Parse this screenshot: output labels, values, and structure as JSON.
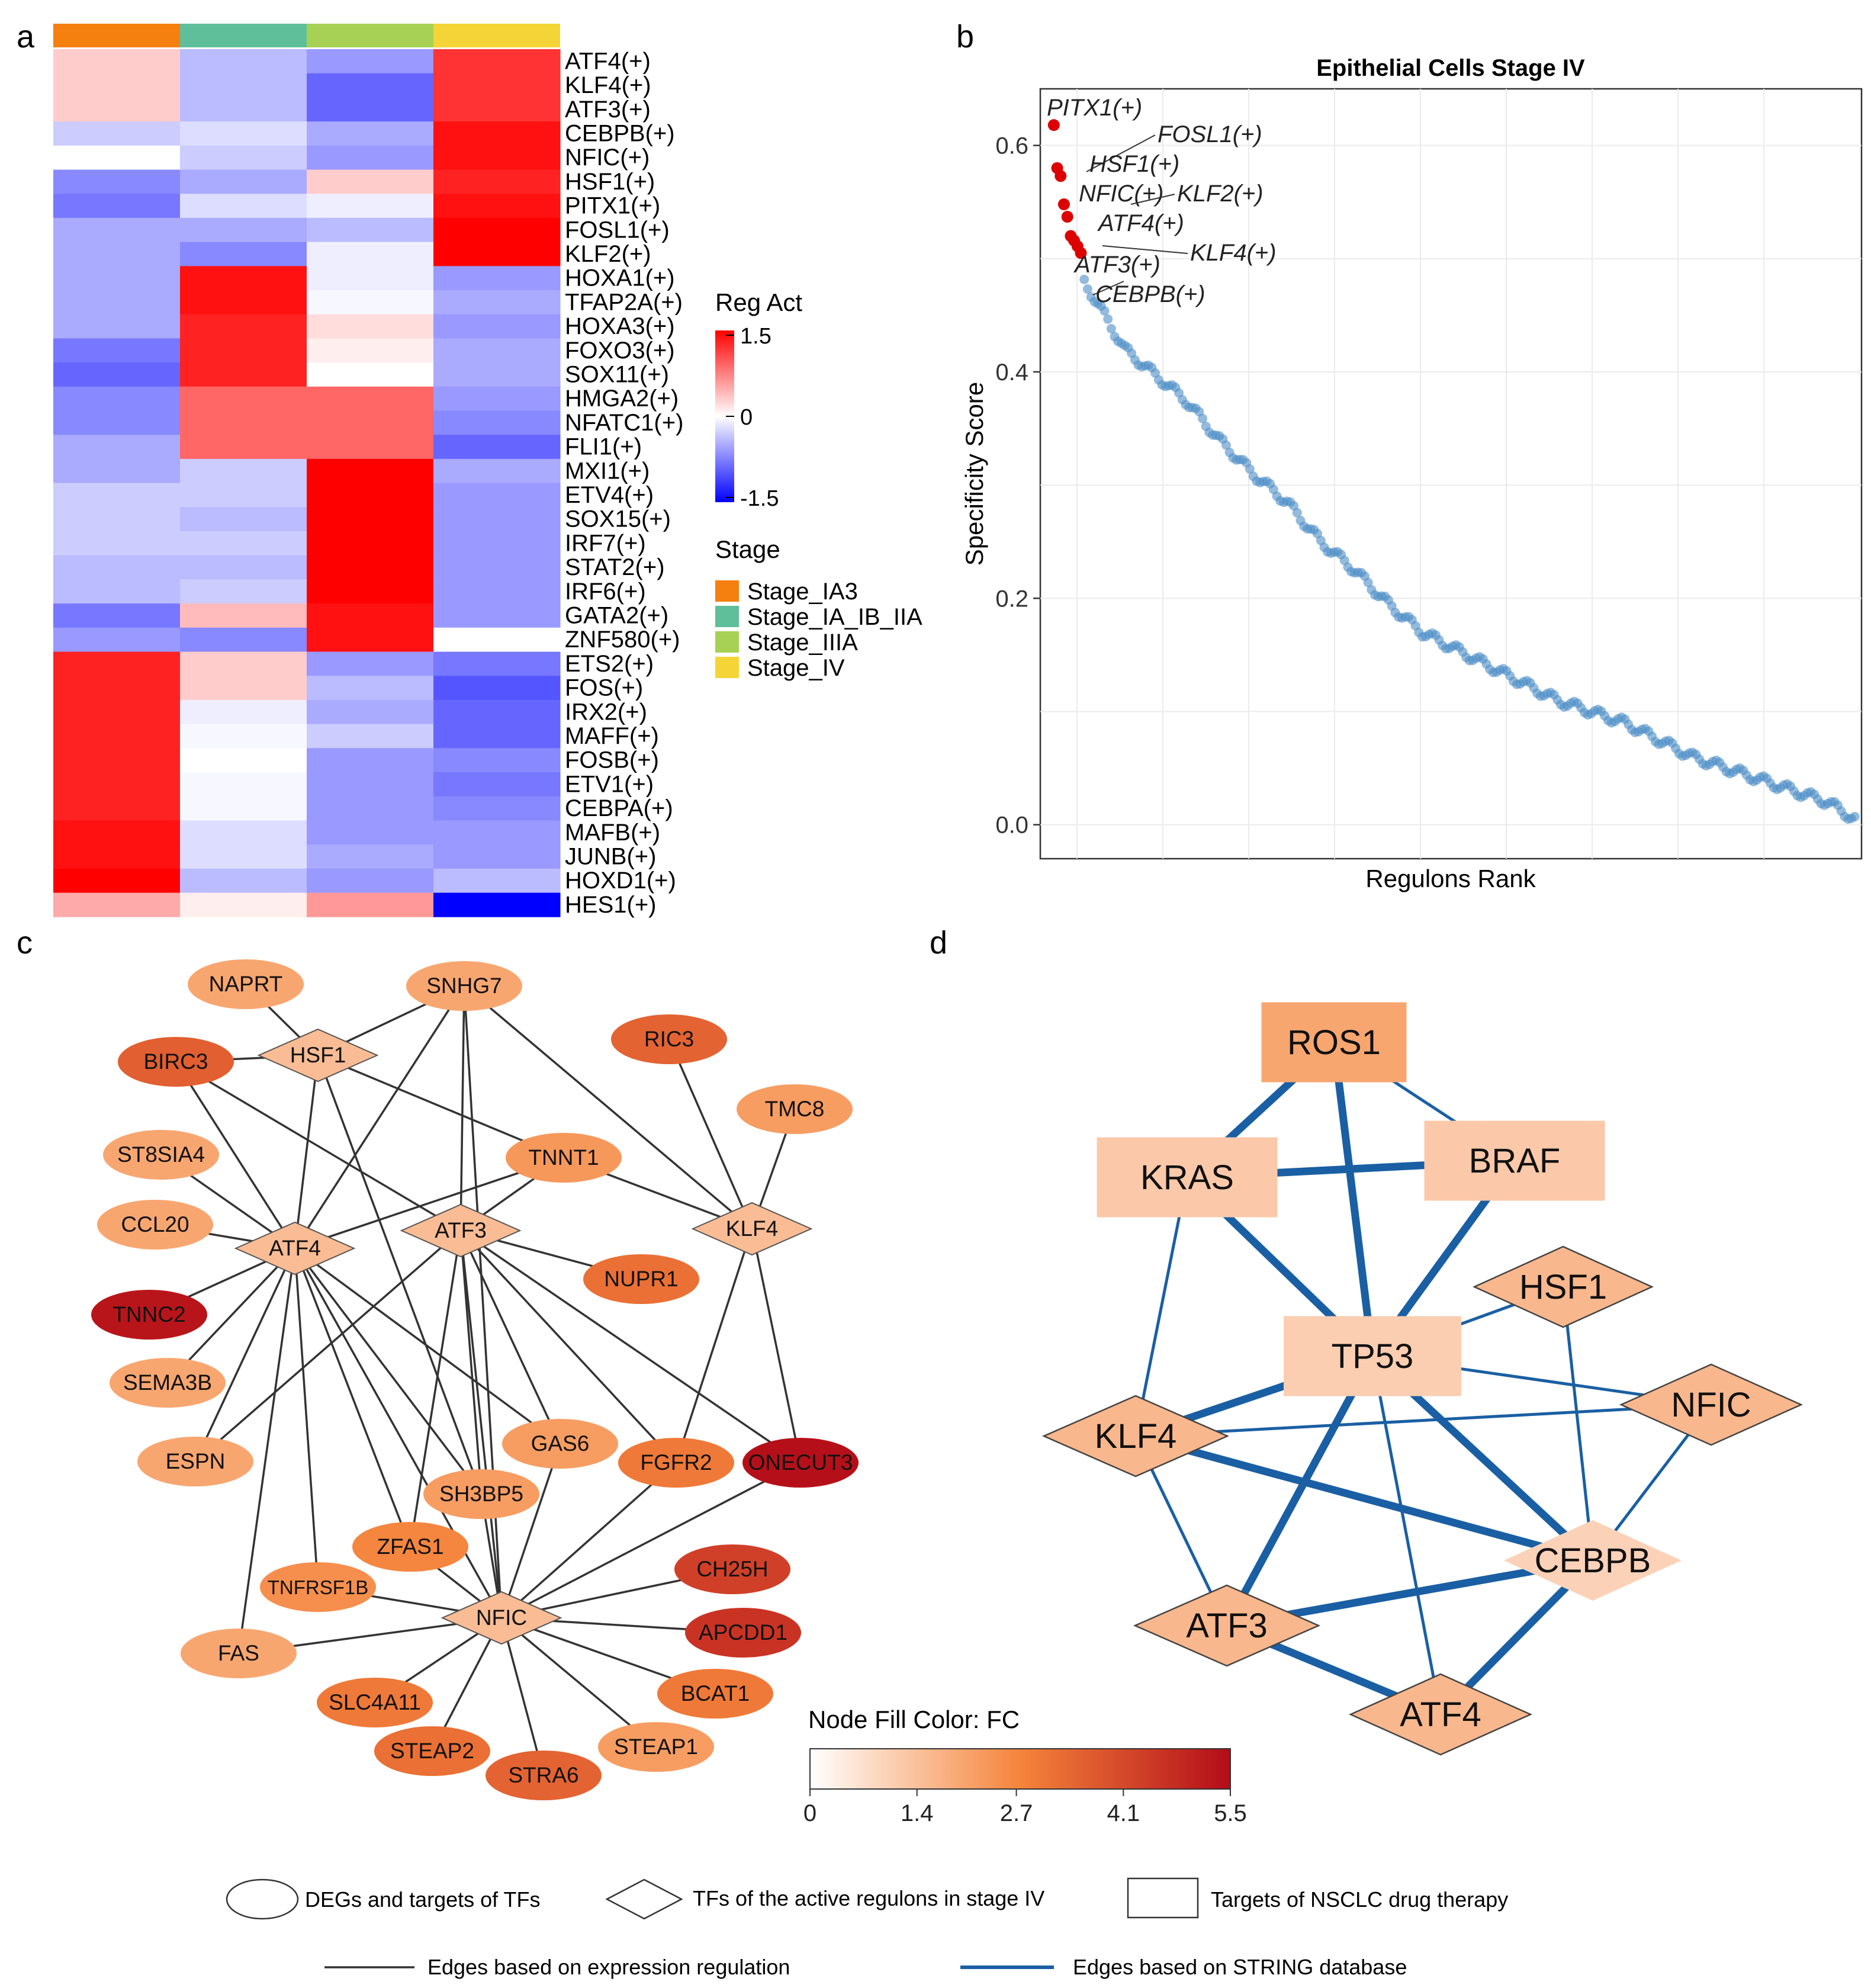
{
  "panel_labels": {
    "a": "a",
    "b": "b",
    "c": "c",
    "d": "d"
  },
  "colors": {
    "heat_low": "#0000ff",
    "heat_mid": "#ffffff",
    "heat_high": "#ff0000",
    "stage_IA3": "#f57f0f",
    "stage_IA_IB_IIA": "#5fbf9b",
    "stage_IIIA": "#a6d154",
    "stage_IV": "#f5d437",
    "fc_low": "#ffffff",
    "fc_mid": "#f5843b",
    "fc_high": "#b30c19",
    "string_edge": "#1a5fa3",
    "expr_edge": "#333333",
    "scatter_point": "#4d8ec7",
    "scatter_highlight": "#dd0000"
  },
  "chart_data": [
    {
      "type": "heatmap",
      "panel": "a",
      "columns": [
        "Stage_IA3",
        "Stage_IA_IB_IIA",
        "Stage_IIIA",
        "Stage_IV"
      ],
      "rows": [
        "ATF4(+)",
        "KLF4(+)",
        "ATF3(+)",
        "CEBPB(+)",
        "NFIC(+)",
        "HSF1(+)",
        "PITX1(+)",
        "FOSL1(+)",
        "KLF2(+)",
        "HOXA1(+)",
        "TFAP2A(+)",
        "HOXA3(+)",
        "FOXO3(+)",
        "SOX11(+)",
        "HMGA2(+)",
        "NFATC1(+)",
        "FLI1(+)",
        "MXI1(+)",
        "ETV4(+)",
        "SOX15(+)",
        "IRF7(+)",
        "STAT2(+)",
        "IRF6(+)",
        "GATA2(+)",
        "ZNF580(+)",
        "ETS2(+)",
        "FOS(+)",
        "IRX2(+)",
        "MAFF(+)",
        "FOSB(+)",
        "ETV1(+)",
        "CEBPA(+)",
        "MAFB(+)",
        "JUNB(+)",
        "HOXD1(+)",
        "HES1(+)"
      ],
      "values": [
        [
          0.3,
          -0.4,
          -0.6,
          1.2
        ],
        [
          0.3,
          -0.4,
          -0.9,
          1.2
        ],
        [
          0.3,
          -0.4,
          -0.9,
          1.2
        ],
        [
          -0.3,
          -0.2,
          -0.5,
          1.4
        ],
        [
          0.0,
          -0.3,
          -0.6,
          1.4
        ],
        [
          -0.7,
          -0.5,
          0.3,
          1.3
        ],
        [
          -0.8,
          -0.2,
          -0.1,
          1.4
        ],
        [
          -0.5,
          -0.5,
          -0.4,
          1.5
        ],
        [
          -0.5,
          -0.7,
          -0.1,
          1.5
        ],
        [
          -0.5,
          1.4,
          -0.1,
          -0.6
        ],
        [
          -0.5,
          1.4,
          -0.05,
          -0.5
        ],
        [
          -0.5,
          1.3,
          0.2,
          -0.6
        ],
        [
          -0.8,
          1.3,
          0.1,
          -0.5
        ],
        [
          -0.9,
          1.3,
          0.0,
          -0.5
        ],
        [
          -0.7,
          0.9,
          0.9,
          -0.6
        ],
        [
          -0.7,
          0.9,
          0.9,
          -0.7
        ],
        [
          -0.5,
          0.9,
          0.9,
          -0.9
        ],
        [
          -0.5,
          -0.3,
          1.5,
          -0.5
        ],
        [
          -0.3,
          -0.3,
          1.5,
          -0.6
        ],
        [
          -0.3,
          -0.4,
          1.5,
          -0.6
        ],
        [
          -0.3,
          -0.3,
          1.5,
          -0.6
        ],
        [
          -0.4,
          -0.4,
          1.5,
          -0.6
        ],
        [
          -0.4,
          -0.3,
          1.5,
          -0.6
        ],
        [
          -0.8,
          0.4,
          1.4,
          -0.6
        ],
        [
          -0.6,
          -0.7,
          1.4,
          0.0
        ],
        [
          1.3,
          0.3,
          -0.6,
          -0.8
        ],
        [
          1.3,
          0.3,
          -0.4,
          -1.0
        ],
        [
          1.3,
          -0.1,
          -0.5,
          -0.9
        ],
        [
          1.3,
          -0.05,
          -0.3,
          -0.9
        ],
        [
          1.3,
          0.0,
          -0.6,
          -0.7
        ],
        [
          1.3,
          -0.05,
          -0.6,
          -0.8
        ],
        [
          1.3,
          -0.05,
          -0.6,
          -0.7
        ],
        [
          1.4,
          -0.2,
          -0.6,
          -0.6
        ],
        [
          1.4,
          -0.2,
          -0.5,
          -0.6
        ],
        [
          1.5,
          -0.4,
          -0.6,
          -0.4
        ],
        [
          0.5,
          0.1,
          0.6,
          -1.5
        ]
      ],
      "legend_title": "Reg Act",
      "scale_labels": [
        "1.5",
        "0",
        "-1.5"
      ],
      "stage_legend_title": "Stage",
      "stage_legend": [
        "Stage_IA3",
        "Stage_IA_IB_IIA",
        "Stage_IIIA",
        "Stage_IV"
      ]
    },
    {
      "type": "scatter",
      "panel": "b",
      "title": "Epithelial Cells Stage IV",
      "xlabel": "Regulons Rank",
      "ylabel": "Specificity Score",
      "ylim": [
        -0.03,
        0.65
      ],
      "xlim": [
        -3,
        240
      ],
      "yticks": [
        "0.0",
        "0.2",
        "0.4",
        "0.6"
      ],
      "n_points": 240,
      "highlighted": [
        {
          "label": "PITX1(+)",
          "rank": 1,
          "score": 0.618
        },
        {
          "label": "FOSL1(+)",
          "rank": 2,
          "score": 0.58
        },
        {
          "label": "HSF1(+)",
          "rank": 3,
          "score": 0.573
        },
        {
          "label": "NFIC(+)",
          "rank": 4,
          "score": 0.548
        },
        {
          "label": "KLF2(+)",
          "rank": 5,
          "score": 0.537
        },
        {
          "label": "ATF4(+)",
          "rank": 6,
          "score": 0.52
        },
        {
          "label": "KLF4(+)",
          "rank": 7,
          "score": 0.516
        },
        {
          "label": "ATF3(+)",
          "rank": 8,
          "score": 0.511
        },
        {
          "label": "CEBPB(+)",
          "rank": 9,
          "score": 0.505
        }
      ],
      "curve": [
        [
          10,
          0.48
        ],
        [
          15,
          0.455
        ],
        [
          22,
          0.42
        ],
        [
          30,
          0.4
        ],
        [
          40,
          0.375
        ],
        [
          50,
          0.34
        ],
        [
          60,
          0.31
        ],
        [
          70,
          0.285
        ],
        [
          80,
          0.25
        ],
        [
          90,
          0.225
        ],
        [
          100,
          0.195
        ],
        [
          110,
          0.17
        ],
        [
          120,
          0.155
        ],
        [
          130,
          0.14
        ],
        [
          140,
          0.125
        ],
        [
          150,
          0.11
        ],
        [
          160,
          0.1
        ],
        [
          170,
          0.09
        ],
        [
          180,
          0.075
        ],
        [
          190,
          0.06
        ],
        [
          200,
          0.05
        ],
        [
          210,
          0.04
        ],
        [
          220,
          0.03
        ],
        [
          230,
          0.02
        ],
        [
          238,
          0.005
        ]
      ]
    },
    {
      "type": "network",
      "panel": "c",
      "nodes": [
        {
          "label": "NAPRT",
          "shape": "ellipse",
          "fc": 2.0
        },
        {
          "label": "SNHG7",
          "shape": "ellipse",
          "fc": 2.0
        },
        {
          "label": "HSF1",
          "shape": "diamond",
          "fc": 1.5
        },
        {
          "label": "BIRC3",
          "shape": "ellipse",
          "fc": 3.6
        },
        {
          "label": "RIC3",
          "shape": "ellipse",
          "fc": 3.5
        },
        {
          "label": "TMC8",
          "shape": "ellipse",
          "fc": 2.2
        },
        {
          "label": "ST8SIA4",
          "shape": "ellipse",
          "fc": 2.0
        },
        {
          "label": "TNNT1",
          "shape": "ellipse",
          "fc": 2.3
        },
        {
          "label": "CCL20",
          "shape": "ellipse",
          "fc": 2.0
        },
        {
          "label": "ATF4",
          "shape": "diamond",
          "fc": 1.5
        },
        {
          "label": "ATF3",
          "shape": "diamond",
          "fc": 1.5
        },
        {
          "label": "KLF4",
          "shape": "diamond",
          "fc": 1.5
        },
        {
          "label": "NUPR1",
          "shape": "ellipse",
          "fc": 3.2
        },
        {
          "label": "TNNC2",
          "shape": "ellipse",
          "fc": 5.3
        },
        {
          "label": "SEMA3B",
          "shape": "ellipse",
          "fc": 2.0
        },
        {
          "label": "ESPN",
          "shape": "ellipse",
          "fc": 2.0
        },
        {
          "label": "GAS6",
          "shape": "ellipse",
          "fc": 2.2
        },
        {
          "label": "FGFR2",
          "shape": "ellipse",
          "fc": 3.0
        },
        {
          "label": "ONECUT3",
          "shape": "ellipse",
          "fc": 5.4
        },
        {
          "label": "SH3BP5",
          "shape": "ellipse",
          "fc": 2.2
        },
        {
          "label": "ZFAS1",
          "shape": "ellipse",
          "fc": 2.7
        },
        {
          "label": "CH25H",
          "shape": "ellipse",
          "fc": 4.3
        },
        {
          "label": "TNFRSF1B",
          "shape": "ellipse",
          "fc": 2.5
        },
        {
          "label": "NFIC",
          "shape": "diamond",
          "fc": 1.5
        },
        {
          "label": "APCDD1",
          "shape": "ellipse",
          "fc": 4.6
        },
        {
          "label": "FAS",
          "shape": "ellipse",
          "fc": 2.0
        },
        {
          "label": "SLC4A11",
          "shape": "ellipse",
          "fc": 3.0
        },
        {
          "label": "BCAT1",
          "shape": "ellipse",
          "fc": 3.0
        },
        {
          "label": "STEAP2",
          "shape": "ellipse",
          "fc": 3.2
        },
        {
          "label": "STEAP1",
          "shape": "ellipse",
          "fc": 2.2
        },
        {
          "label": "STRA6",
          "shape": "ellipse",
          "fc": 3.5
        }
      ],
      "edges": [
        [
          "HSF1",
          "NAPRT"
        ],
        [
          "HSF1",
          "SNHG7"
        ],
        [
          "HSF1",
          "BIRC3"
        ],
        [
          "HSF1",
          "TNNT1"
        ],
        [
          "HSF1",
          "ATF4"
        ],
        [
          "HSF1",
          "SH3BP5"
        ],
        [
          "SNHG7",
          "ATF4"
        ],
        [
          "SNHG7",
          "ATF3"
        ],
        [
          "SNHG7",
          "KLF4"
        ],
        [
          "SNHG7",
          "NFIC"
        ],
        [
          "BIRC3",
          "ATF4"
        ],
        [
          "BIRC3",
          "ATF3"
        ],
        [
          "ST8SIA4",
          "ATF4"
        ],
        [
          "CCL20",
          "ATF4"
        ],
        [
          "TNNT1",
          "ATF4"
        ],
        [
          "TNNT1",
          "ATF3"
        ],
        [
          "TNNT1",
          "KLF4"
        ],
        [
          "RIC3",
          "KLF4"
        ],
        [
          "TMC8",
          "KLF4"
        ],
        [
          "KLF4",
          "FGFR2"
        ],
        [
          "KLF4",
          "ONECUT3"
        ],
        [
          "ATF3",
          "NUPR1"
        ],
        [
          "ATF3",
          "ESPN"
        ],
        [
          "ATF3",
          "GAS6"
        ],
        [
          "ATF3",
          "FGFR2"
        ],
        [
          "ATF3",
          "ONECUT3"
        ],
        [
          "ATF3",
          "SH3BP5"
        ],
        [
          "ATF3",
          "ZFAS1"
        ],
        [
          "ATF3",
          "NFIC"
        ],
        [
          "ATF4",
          "TNNC2"
        ],
        [
          "ATF4",
          "SEMA3B"
        ],
        [
          "ATF4",
          "ESPN"
        ],
        [
          "ATF4",
          "FAS"
        ],
        [
          "ATF4",
          "TNFRSF1B"
        ],
        [
          "ATF4",
          "ZFAS1"
        ],
        [
          "ATF4",
          "SH3BP5"
        ],
        [
          "ATF4",
          "GAS6"
        ],
        [
          "ATF4",
          "NFIC"
        ],
        [
          "NFIC",
          "GAS6"
        ],
        [
          "NFIC",
          "FGFR2"
        ],
        [
          "NFIC",
          "ONECUT3"
        ],
        [
          "NFIC",
          "CH25H"
        ],
        [
          "NFIC",
          "APCDD1"
        ],
        [
          "NFIC",
          "BCAT1"
        ],
        [
          "NFIC",
          "STEAP1"
        ],
        [
          "NFIC",
          "STRA6"
        ],
        [
          "NFIC",
          "STEAP2"
        ],
        [
          "NFIC",
          "SLC4A11"
        ],
        [
          "NFIC",
          "FAS"
        ],
        [
          "NFIC",
          "TNFRSF1B"
        ],
        [
          "NFIC",
          "ZFAS1"
        ],
        [
          "NFIC",
          "SH3BP5"
        ]
      ],
      "color_legend_title": "Node Fill Color:  FC",
      "color_ticks": [
        "0",
        "1.4",
        "2.7",
        "4.1",
        "5.5"
      ],
      "color_range": [
        0,
        5.5
      ]
    },
    {
      "type": "network",
      "panel": "d",
      "nodes": [
        {
          "label": "ROS1",
          "shape": "rect",
          "fc": 2.0
        },
        {
          "label": "KRAS",
          "shape": "rect",
          "fc": 1.2
        },
        {
          "label": "BRAF",
          "shape": "rect",
          "fc": 1.2
        },
        {
          "label": "HSF1",
          "shape": "diamond",
          "fc": 1.6
        },
        {
          "label": "TP53",
          "shape": "rect",
          "fc": 1.1
        },
        {
          "label": "NFIC",
          "shape": "diamond",
          "fc": 1.6
        },
        {
          "label": "KLF4",
          "shape": "diamond",
          "fc": 1.6
        },
        {
          "label": "CEBPB",
          "shape": "diamond",
          "fc": 1.0
        },
        {
          "label": "ATF3",
          "shape": "diamond",
          "fc": 1.6
        },
        {
          "label": "ATF4",
          "shape": "diamond",
          "fc": 1.6
        }
      ],
      "edges": [
        {
          "a": "ROS1",
          "b": "KRAS",
          "w": "thick"
        },
        {
          "a": "ROS1",
          "b": "BRAF",
          "w": "thin"
        },
        {
          "a": "ROS1",
          "b": "TP53",
          "w": "thick"
        },
        {
          "a": "KRAS",
          "b": "BRAF",
          "w": "thick"
        },
        {
          "a": "KRAS",
          "b": "TP53",
          "w": "thick"
        },
        {
          "a": "KRAS",
          "b": "KLF4",
          "w": "thin"
        },
        {
          "a": "BRAF",
          "b": "TP53",
          "w": "thick"
        },
        {
          "a": "TP53",
          "b": "HSF1",
          "w": "thin"
        },
        {
          "a": "TP53",
          "b": "NFIC",
          "w": "thin"
        },
        {
          "a": "TP53",
          "b": "KLF4",
          "w": "thick"
        },
        {
          "a": "TP53",
          "b": "CEBPB",
          "w": "thick"
        },
        {
          "a": "TP53",
          "b": "ATF3",
          "w": "thick"
        },
        {
          "a": "TP53",
          "b": "ATF4",
          "w": "thin"
        },
        {
          "a": "KLF4",
          "b": "NFIC",
          "w": "thin"
        },
        {
          "a": "KLF4",
          "b": "CEBPB",
          "w": "thick"
        },
        {
          "a": "KLF4",
          "b": "ATF3",
          "w": "thin"
        },
        {
          "a": "HSF1",
          "b": "CEBPB",
          "w": "thin"
        },
        {
          "a": "NFIC",
          "b": "CEBPB",
          "w": "thin"
        },
        {
          "a": "CEBPB",
          "b": "ATF3",
          "w": "thick"
        },
        {
          "a": "CEBPB",
          "b": "ATF4",
          "w": "thick"
        },
        {
          "a": "ATF3",
          "b": "ATF4",
          "w": "thick"
        }
      ]
    }
  ],
  "legend": {
    "ellipse": "DEGs and targets of TFs",
    "diamond": "TFs of the active regulons in stage IV",
    "rect": "Targets of NSCLC drug therapy",
    "expr_edge": "Edges based on expression regulation",
    "string_edge": "Edges based on STRING database"
  }
}
